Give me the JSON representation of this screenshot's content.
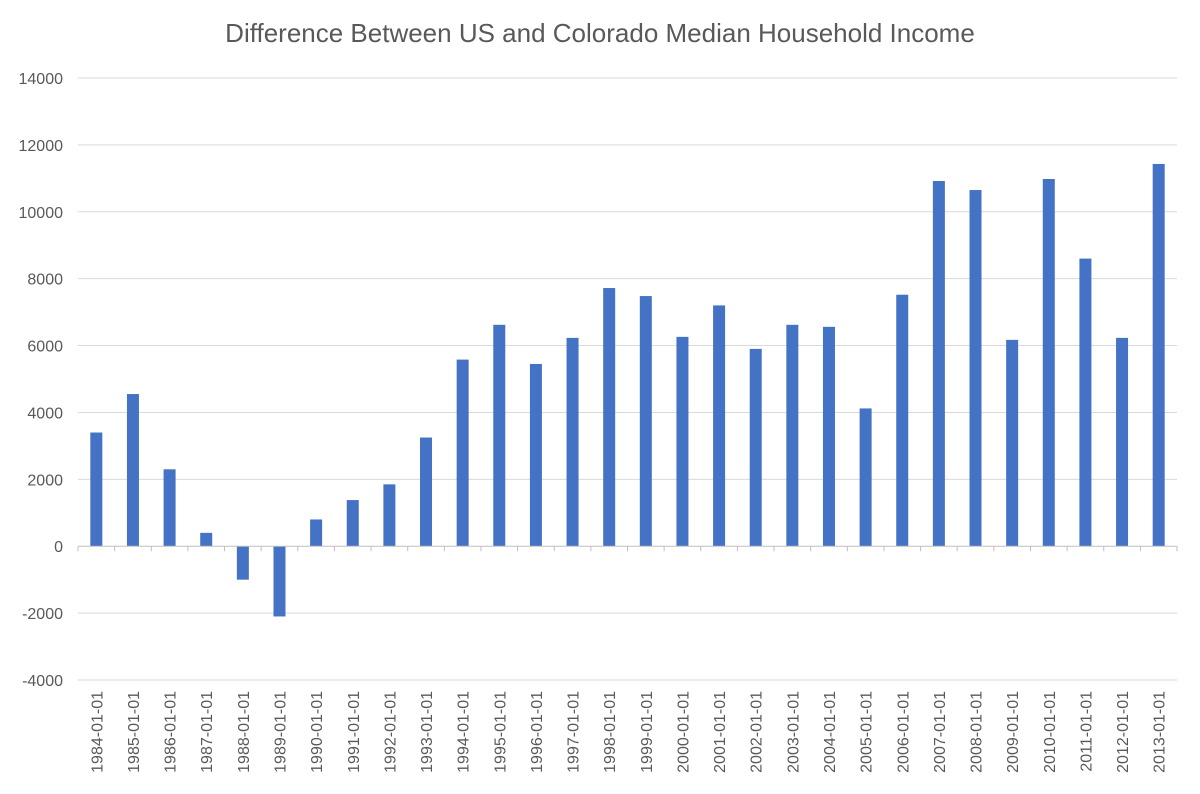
{
  "chart_data": {
    "type": "bar",
    "title": "Difference Between US and Colorado Median Household Income",
    "xlabel": "",
    "ylabel": "",
    "ylim": [
      -4000,
      14000
    ],
    "yticks": [
      -4000,
      -2000,
      0,
      2000,
      4000,
      6000,
      8000,
      10000,
      12000,
      14000
    ],
    "grid": true,
    "bar_color": "#4472C4",
    "categories": [
      "1984-01-01",
      "1985-01-01",
      "1986-01-01",
      "1987-01-01",
      "1988-01-01",
      "1989-01-01",
      "1990-01-01",
      "1991-01-01",
      "1992-01-01",
      "1993-01-01",
      "1994-01-01",
      "1995-01-01",
      "1996-01-01",
      "1997-01-01",
      "1998-01-01",
      "1999-01-01",
      "2000-01-01",
      "2001-01-01",
      "2002-01-01",
      "2003-01-01",
      "2004-01-01",
      "2005-01-01",
      "2006-01-01",
      "2007-01-01",
      "2008-01-01",
      "2009-01-01",
      "2010-01-01",
      "2011-01-01",
      "2012-01-01",
      "2013-01-01"
    ],
    "values": [
      3400,
      4550,
      2300,
      400,
      -1000,
      -2100,
      800,
      1380,
      1850,
      3250,
      5580,
      6620,
      5450,
      6230,
      7720,
      7480,
      6260,
      7200,
      5900,
      6620,
      6560,
      4120,
      7520,
      10920,
      10650,
      6170,
      10980,
      8600,
      6230,
      11430
    ]
  }
}
